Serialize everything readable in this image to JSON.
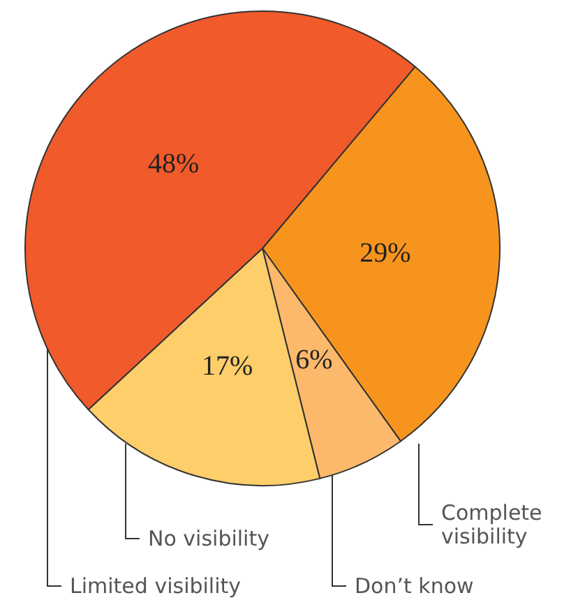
{
  "chart_data": {
    "type": "pie",
    "categories": [
      "Complete visibility",
      "Don’t know",
      "No visibility",
      "Limited visibility"
    ],
    "values": [
      29,
      6,
      17,
      48
    ],
    "colors": [
      "#f7941d",
      "#fdb96b",
      "#fece6a",
      "#f15a2b"
    ],
    "value_labels": [
      "29%",
      "6%",
      "17%",
      "48%"
    ],
    "legend": false
  }
}
